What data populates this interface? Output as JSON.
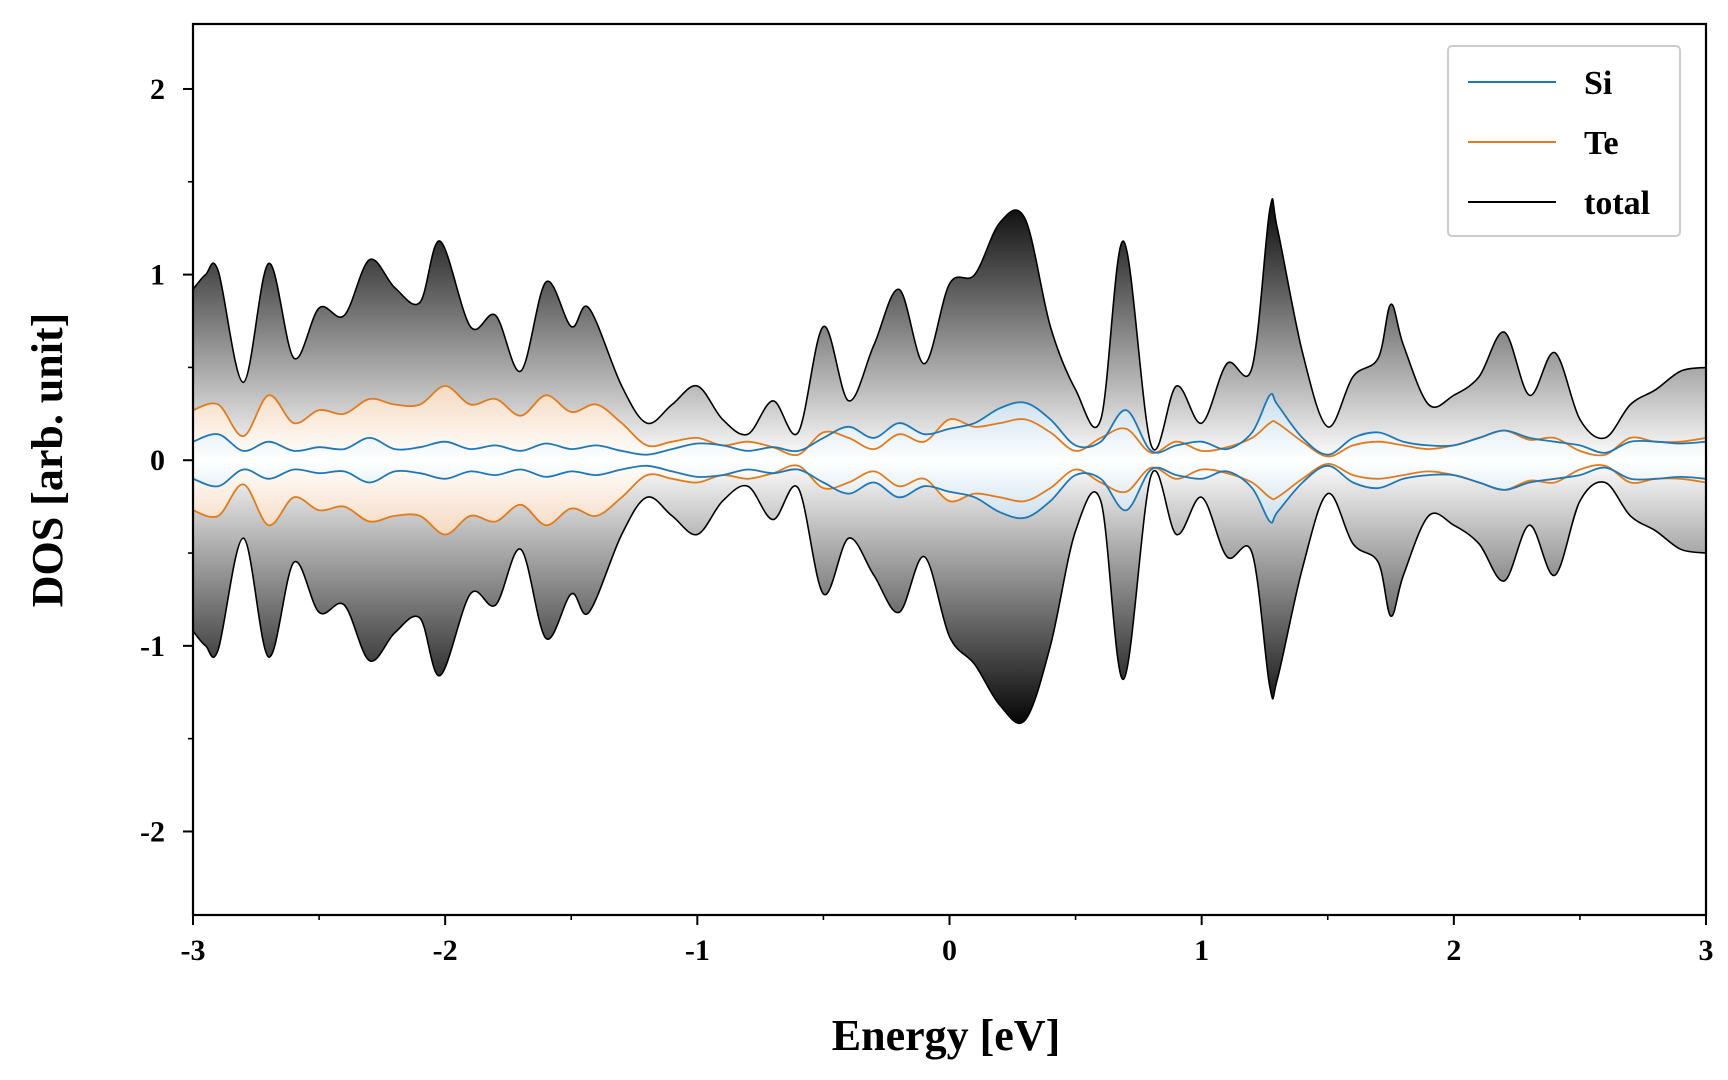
{
  "chart_data": {
    "type": "area",
    "title": "",
    "xlabel": "Energy [eV]",
    "ylabel": "DOS [arb. unit]",
    "xlim": [
      -3,
      3
    ],
    "ylim": [
      -2.45,
      2.35
    ],
    "xticks": [
      -3,
      -2,
      -1,
      0,
      1,
      2,
      3
    ],
    "yticks": [
      -2,
      -1,
      0,
      1,
      2
    ],
    "grid": false,
    "legend_position": "top-right",
    "spin": "up drawn above zero, down mirrored below zero",
    "series": [
      {
        "name": "Si",
        "color": "#1f77b4",
        "x": [
          -3.0,
          -2.9,
          -2.8,
          -2.7,
          -2.6,
          -2.5,
          -2.4,
          -2.3,
          -2.2,
          -2.1,
          -2.0,
          -1.9,
          -1.8,
          -1.7,
          -1.6,
          -1.5,
          -1.4,
          -1.3,
          -1.2,
          -1.1,
          -1.0,
          -0.9,
          -0.8,
          -0.7,
          -0.6,
          -0.5,
          -0.4,
          -0.3,
          -0.2,
          -0.1,
          0.0,
          0.1,
          0.2,
          0.3,
          0.4,
          0.5,
          0.6,
          0.7,
          0.8,
          0.9,
          1.0,
          1.1,
          1.2,
          1.27,
          1.3,
          1.4,
          1.5,
          1.6,
          1.7,
          1.8,
          1.9,
          2.0,
          2.1,
          2.2,
          2.3,
          2.4,
          2.5,
          2.6,
          2.7,
          2.8,
          2.9,
          3.0
        ],
        "up": [
          0.1,
          0.14,
          0.05,
          0.1,
          0.05,
          0.07,
          0.06,
          0.12,
          0.06,
          0.07,
          0.1,
          0.06,
          0.08,
          0.05,
          0.09,
          0.06,
          0.08,
          0.05,
          0.03,
          0.06,
          0.09,
          0.08,
          0.05,
          0.07,
          0.05,
          0.12,
          0.18,
          0.12,
          0.2,
          0.14,
          0.17,
          0.2,
          0.28,
          0.31,
          0.22,
          0.08,
          0.1,
          0.27,
          0.05,
          0.08,
          0.1,
          0.06,
          0.15,
          0.35,
          0.3,
          0.12,
          0.03,
          0.12,
          0.15,
          0.1,
          0.08,
          0.08,
          0.12,
          0.16,
          0.12,
          0.1,
          0.08,
          0.04,
          0.1,
          0.1,
          0.09,
          0.1
        ],
        "down": [
          0.1,
          0.14,
          0.05,
          0.1,
          0.05,
          0.07,
          0.06,
          0.12,
          0.06,
          0.07,
          0.1,
          0.06,
          0.08,
          0.05,
          0.09,
          0.06,
          0.08,
          0.05,
          0.03,
          0.06,
          0.09,
          0.08,
          0.05,
          0.07,
          0.05,
          0.12,
          0.18,
          0.12,
          0.2,
          0.14,
          0.17,
          0.2,
          0.28,
          0.31,
          0.22,
          0.08,
          0.1,
          0.27,
          0.05,
          0.08,
          0.1,
          0.06,
          0.15,
          0.33,
          0.28,
          0.12,
          0.03,
          0.12,
          0.15,
          0.1,
          0.08,
          0.08,
          0.12,
          0.16,
          0.12,
          0.1,
          0.08,
          0.04,
          0.1,
          0.1,
          0.09,
          0.1
        ]
      },
      {
        "name": "Te",
        "color": "#e07b1e",
        "x": [
          -3.0,
          -2.9,
          -2.8,
          -2.7,
          -2.6,
          -2.5,
          -2.4,
          -2.3,
          -2.2,
          -2.1,
          -2.0,
          -1.9,
          -1.8,
          -1.7,
          -1.6,
          -1.5,
          -1.4,
          -1.3,
          -1.2,
          -1.1,
          -1.0,
          -0.9,
          -0.8,
          -0.7,
          -0.6,
          -0.5,
          -0.4,
          -0.3,
          -0.2,
          -0.1,
          0.0,
          0.1,
          0.2,
          0.3,
          0.4,
          0.5,
          0.6,
          0.7,
          0.8,
          0.9,
          1.0,
          1.1,
          1.2,
          1.27,
          1.3,
          1.4,
          1.5,
          1.6,
          1.7,
          1.8,
          1.9,
          2.0,
          2.1,
          2.2,
          2.3,
          2.4,
          2.5,
          2.6,
          2.7,
          2.8,
          2.9,
          3.0
        ],
        "up": [
          0.27,
          0.3,
          0.13,
          0.35,
          0.2,
          0.27,
          0.25,
          0.33,
          0.3,
          0.3,
          0.4,
          0.3,
          0.33,
          0.24,
          0.35,
          0.26,
          0.3,
          0.2,
          0.08,
          0.1,
          0.12,
          0.08,
          0.1,
          0.07,
          0.03,
          0.15,
          0.12,
          0.06,
          0.14,
          0.1,
          0.22,
          0.18,
          0.2,
          0.22,
          0.15,
          0.05,
          0.12,
          0.17,
          0.04,
          0.1,
          0.05,
          0.07,
          0.12,
          0.2,
          0.2,
          0.1,
          0.02,
          0.08,
          0.1,
          0.08,
          0.06,
          0.08,
          0.12,
          0.16,
          0.11,
          0.12,
          0.05,
          0.03,
          0.12,
          0.1,
          0.1,
          0.12
        ],
        "down": [
          0.27,
          0.3,
          0.13,
          0.35,
          0.2,
          0.27,
          0.25,
          0.33,
          0.3,
          0.3,
          0.4,
          0.3,
          0.33,
          0.24,
          0.35,
          0.26,
          0.3,
          0.2,
          0.08,
          0.1,
          0.12,
          0.08,
          0.1,
          0.07,
          0.03,
          0.15,
          0.12,
          0.06,
          0.14,
          0.1,
          0.22,
          0.18,
          0.2,
          0.22,
          0.15,
          0.05,
          0.12,
          0.17,
          0.04,
          0.1,
          0.05,
          0.07,
          0.12,
          0.2,
          0.2,
          0.1,
          0.02,
          0.08,
          0.1,
          0.08,
          0.06,
          0.08,
          0.12,
          0.16,
          0.11,
          0.12,
          0.05,
          0.03,
          0.12,
          0.1,
          0.1,
          0.12
        ]
      },
      {
        "name": "total",
        "color": "#000000",
        "x": [
          -3.0,
          -2.95,
          -2.9,
          -2.8,
          -2.7,
          -2.6,
          -2.5,
          -2.4,
          -2.3,
          -2.2,
          -2.1,
          -2.02,
          -1.9,
          -1.8,
          -1.7,
          -1.6,
          -1.5,
          -1.43,
          -1.3,
          -1.2,
          -1.1,
          -1.0,
          -0.9,
          -0.8,
          -0.7,
          -0.6,
          -0.5,
          -0.4,
          -0.3,
          -0.2,
          -0.1,
          0.0,
          0.1,
          0.2,
          0.3,
          0.4,
          0.5,
          0.6,
          0.69,
          0.8,
          0.9,
          1.0,
          1.1,
          1.2,
          1.27,
          1.3,
          1.4,
          1.5,
          1.6,
          1.7,
          1.75,
          1.8,
          1.9,
          2.0,
          2.1,
          2.2,
          2.3,
          2.4,
          2.5,
          2.6,
          2.7,
          2.8,
          2.9,
          3.0
        ],
        "up": [
          0.92,
          1.0,
          1.02,
          0.42,
          1.06,
          0.55,
          0.82,
          0.78,
          1.08,
          0.93,
          0.85,
          1.18,
          0.72,
          0.78,
          0.48,
          0.96,
          0.72,
          0.82,
          0.4,
          0.2,
          0.3,
          0.4,
          0.22,
          0.14,
          0.32,
          0.15,
          0.72,
          0.32,
          0.62,
          0.92,
          0.52,
          0.95,
          1.0,
          1.28,
          1.3,
          0.72,
          0.38,
          0.22,
          1.18,
          0.08,
          0.4,
          0.2,
          0.52,
          0.5,
          1.35,
          1.25,
          0.58,
          0.18,
          0.45,
          0.55,
          0.84,
          0.62,
          0.3,
          0.35,
          0.45,
          0.69,
          0.35,
          0.58,
          0.22,
          0.12,
          0.3,
          0.38,
          0.48,
          0.5
        ],
        "down": [
          0.92,
          1.0,
          1.02,
          0.42,
          1.06,
          0.55,
          0.82,
          0.78,
          1.08,
          0.93,
          0.85,
          1.16,
          0.72,
          0.78,
          0.48,
          0.96,
          0.72,
          0.82,
          0.4,
          0.2,
          0.3,
          0.4,
          0.22,
          0.14,
          0.32,
          0.15,
          0.72,
          0.42,
          0.62,
          0.82,
          0.52,
          0.95,
          1.1,
          1.32,
          1.4,
          1.0,
          0.38,
          0.22,
          1.18,
          0.08,
          0.4,
          0.2,
          0.52,
          0.5,
          1.22,
          1.18,
          0.58,
          0.18,
          0.45,
          0.55,
          0.84,
          0.62,
          0.3,
          0.35,
          0.45,
          0.65,
          0.35,
          0.62,
          0.22,
          0.12,
          0.3,
          0.38,
          0.48,
          0.5
        ]
      }
    ]
  }
}
